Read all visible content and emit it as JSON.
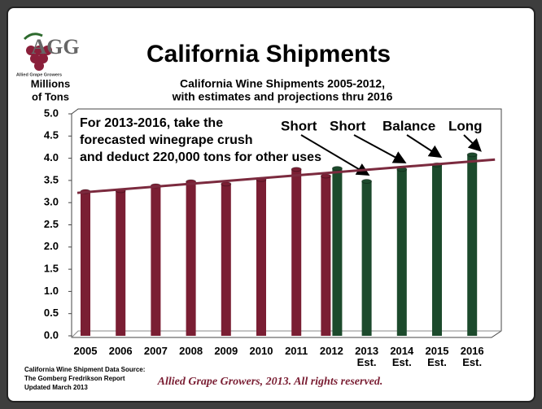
{
  "chart_data": {
    "type": "bar",
    "title": "California Shipments",
    "subtitle": [
      "California Wine Shipments 2005-2012,",
      "with estimates and projections thru 2016"
    ],
    "y_label": [
      "Millions",
      "of Tons"
    ],
    "categories": [
      "2005",
      "2006",
      "2007",
      "2008",
      "2009",
      "2010",
      "2011",
      "2012",
      "2013 Est.",
      "2014 Est.",
      "2015 Est.",
      "2016 Est."
    ],
    "series": [
      {
        "color": "#7a1e33",
        "values": [
          3.25,
          3.27,
          3.38,
          3.47,
          3.42,
          3.52,
          3.75,
          3.6,
          null,
          null,
          null,
          null
        ]
      },
      {
        "color": "#1c4a2c",
        "values": [
          null,
          null,
          null,
          null,
          null,
          null,
          null,
          3.77,
          3.48,
          3.75,
          3.85,
          4.08
        ]
      }
    ],
    "trend": {
      "color": "#7b2a3e",
      "values": [
        3.22,
        3.97
      ]
    },
    "ylim": [
      0,
      5
    ],
    "yticks": [
      {
        "value": 0,
        "label": "0.0"
      },
      {
        "value": 0.5,
        "label": "0.5"
      },
      {
        "value": 1,
        "label": "1.0"
      },
      {
        "value": 1.5,
        "label": "1.5"
      },
      {
        "value": 2,
        "label": "2.0"
      },
      {
        "value": 2.5,
        "label": "2.5"
      },
      {
        "value": 3,
        "label": "3.0"
      },
      {
        "value": 3.5,
        "label": "3.5"
      },
      {
        "value": 4,
        "label": "4.0"
      },
      {
        "value": 4.5,
        "label": "4.5"
      },
      {
        "value": 5,
        "label": "5.0"
      }
    ],
    "note": [
      "For 2013-2016, take the",
      "forecasted winegrape crush",
      "and deduct 220,000 tons for other uses"
    ],
    "annotations": [
      "Short",
      "Short",
      "Balance",
      "Long"
    ],
    "source": [
      "California Wine Shipment  Data Source:",
      "The Gomberg Fredrikson Report",
      "Updated March 2013"
    ],
    "footer": "Allied Grape Growers, 2013.  All rights reserved.",
    "logo": {
      "letters": "AGG",
      "caption": "Allied Grape Growers"
    }
  }
}
